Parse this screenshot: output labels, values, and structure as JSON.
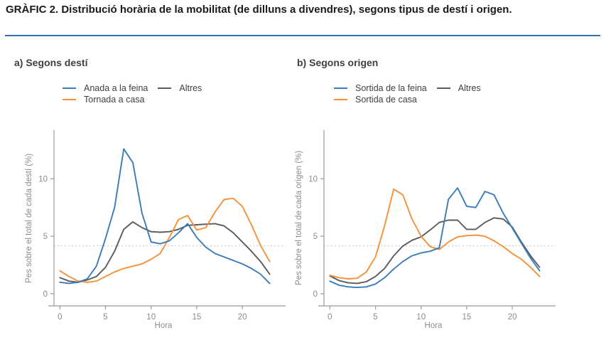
{
  "title": "GRÀFIC 2. Distribució horària de la mobilitat (de dilluns a divendres), segons tipus de destí i origen.",
  "colors": {
    "blue": "#3A7CB9",
    "orange": "#F6913A",
    "gray": "#5B5B5B",
    "title_rule": "#2E74B5",
    "axis": "#999999",
    "tick_text": "#8C8C8C",
    "ref_line": "#CCCCCC"
  },
  "chart_data": [
    {
      "type": "line",
      "panel_label": "a) Segons destí",
      "xlabel": "Hora",
      "ylabel": "Pes sobre el total de cada destí (%)",
      "x": [
        0,
        1,
        2,
        3,
        4,
        5,
        6,
        7,
        8,
        9,
        10,
        11,
        12,
        13,
        14,
        15,
        16,
        17,
        18,
        19,
        20,
        21,
        22,
        23
      ],
      "xticks": [
        0,
        5,
        10,
        15,
        20
      ],
      "yticks": [
        0,
        5,
        10
      ],
      "xlim": [
        0,
        23
      ],
      "ylim": [
        0,
        14
      ],
      "ref_line_y": 4.17,
      "grid": false,
      "legend_position": "top-left",
      "series": [
        {
          "name": "Anada a la feina",
          "color_key": "blue",
          "values": [
            1.0,
            0.9,
            1.0,
            1.3,
            2.4,
            4.8,
            7.5,
            12.6,
            11.4,
            7.0,
            4.5,
            4.35,
            4.6,
            5.3,
            6.1,
            4.9,
            4.05,
            3.5,
            3.2,
            2.9,
            2.6,
            2.2,
            1.7,
            0.9
          ]
        },
        {
          "name": "Tornada a casa",
          "color_key": "orange",
          "values": [
            2.0,
            1.5,
            1.1,
            1.0,
            1.1,
            1.5,
            1.9,
            2.2,
            2.4,
            2.6,
            3.0,
            3.5,
            4.9,
            6.45,
            6.8,
            5.55,
            5.75,
            7.1,
            8.2,
            8.3,
            7.6,
            6.0,
            4.2,
            2.8
          ]
        },
        {
          "name": "Altres",
          "color_key": "gray",
          "values": [
            1.4,
            1.1,
            1.0,
            1.2,
            1.5,
            2.3,
            3.7,
            5.6,
            6.25,
            5.75,
            5.4,
            5.35,
            5.4,
            5.6,
            5.95,
            6.0,
            6.05,
            6.1,
            5.9,
            5.3,
            4.5,
            3.7,
            2.8,
            1.7
          ]
        }
      ]
    },
    {
      "type": "line",
      "panel_label": "b) Segons origen",
      "xlabel": "Hora",
      "ylabel": "Pes sobre el total de cada origen (%)",
      "x": [
        0,
        1,
        2,
        3,
        4,
        5,
        6,
        7,
        8,
        9,
        10,
        11,
        12,
        13,
        14,
        15,
        16,
        17,
        18,
        19,
        20,
        21,
        22,
        23
      ],
      "xticks": [
        0,
        5,
        10,
        15,
        20
      ],
      "yticks": [
        0,
        5,
        10
      ],
      "xlim": [
        0,
        23
      ],
      "ylim": [
        0,
        14
      ],
      "ref_line_y": 4.17,
      "grid": false,
      "legend_position": "top-left",
      "series": [
        {
          "name": "Sortida de la feina",
          "color_key": "blue",
          "values": [
            1.1,
            0.75,
            0.6,
            0.55,
            0.6,
            0.85,
            1.4,
            2.15,
            2.8,
            3.3,
            3.55,
            3.7,
            4.0,
            8.2,
            9.2,
            7.6,
            7.5,
            8.9,
            8.6,
            7.0,
            5.7,
            4.4,
            3.1,
            2.0
          ]
        },
        {
          "name": "Sortida de casa",
          "color_key": "orange",
          "values": [
            1.6,
            1.4,
            1.3,
            1.35,
            1.9,
            3.2,
            5.9,
            9.1,
            8.6,
            6.5,
            5.0,
            4.1,
            3.85,
            4.5,
            4.95,
            5.05,
            5.1,
            5.0,
            4.6,
            4.1,
            3.5,
            3.0,
            2.3,
            1.5
          ]
        },
        {
          "name": "Altres",
          "color_key": "gray",
          "values": [
            1.55,
            1.15,
            0.95,
            0.9,
            1.05,
            1.5,
            2.2,
            3.3,
            4.15,
            4.65,
            4.95,
            5.55,
            6.2,
            6.4,
            6.4,
            5.6,
            5.6,
            6.2,
            6.6,
            6.5,
            5.8,
            4.5,
            3.3,
            2.3
          ]
        }
      ]
    }
  ]
}
